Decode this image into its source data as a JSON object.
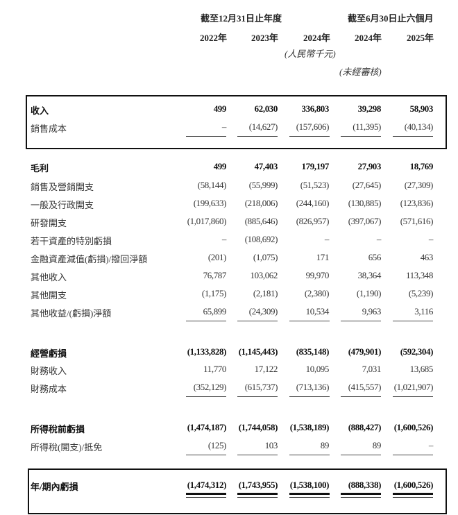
{
  "header": {
    "period_full_year": "截至12月31日止年度",
    "period_half_year": "截至6月30日止六個月",
    "years": [
      "2022年",
      "2023年",
      "2024年",
      "2024年",
      "2025年"
    ],
    "currency_note": "(人民幣千元)",
    "unaudited_note": "(未經審核)"
  },
  "rows": [
    {
      "label": "收入",
      "values": [
        "499",
        "62,030",
        "336,803",
        "39,298",
        "58,903"
      ]
    },
    {
      "label": "銷售成本",
      "values": [
        "–",
        "(14,627)",
        "(157,606)",
        "(11,395)",
        "(40,134)"
      ]
    },
    {
      "label": "毛利",
      "values": [
        "499",
        "47,403",
        "179,197",
        "27,903",
        "18,769"
      ]
    },
    {
      "label": "銷售及營銷開支",
      "values": [
        "(58,144)",
        "(55,999)",
        "(51,523)",
        "(27,645)",
        "(27,309)"
      ]
    },
    {
      "label": "一般及行政開支",
      "values": [
        "(199,633)",
        "(218,006)",
        "(244,160)",
        "(130,885)",
        "(123,836)"
      ]
    },
    {
      "label": "研發開支",
      "values": [
        "(1,017,860)",
        "(885,646)",
        "(826,957)",
        "(397,067)",
        "(571,616)"
      ]
    },
    {
      "label": "若干資產的特別虧損",
      "values": [
        "–",
        "(108,692)",
        "–",
        "–",
        "–"
      ]
    },
    {
      "label": "金融資產減值(虧損)/撥回淨額",
      "values": [
        "(201)",
        "(1,075)",
        "171",
        "656",
        "463"
      ]
    },
    {
      "label": "其他收入",
      "values": [
        "76,787",
        "103,062",
        "99,970",
        "38,364",
        "113,348"
      ]
    },
    {
      "label": "其他開支",
      "values": [
        "(1,175)",
        "(2,181)",
        "(2,380)",
        "(1,190)",
        "(5,239)"
      ]
    },
    {
      "label": "其他收益/(虧損)淨額",
      "values": [
        "65,899",
        "(24,309)",
        "10,534",
        "9,963",
        "3,116"
      ]
    },
    {
      "label": "經營虧損",
      "values": [
        "(1,133,828)",
        "(1,145,443)",
        "(835,148)",
        "(479,901)",
        "(592,304)"
      ]
    },
    {
      "label": "財務收入",
      "values": [
        "11,770",
        "17,122",
        "10,095",
        "7,031",
        "13,685"
      ]
    },
    {
      "label": "財務成本",
      "values": [
        "(352,129)",
        "(615,737)",
        "(713,136)",
        "(415,557)",
        "(1,021,907)"
      ]
    },
    {
      "label": "所得稅前虧損",
      "values": [
        "(1,474,187)",
        "(1,744,058)",
        "(1,538,189)",
        "(888,427)",
        "(1,600,526)"
      ]
    },
    {
      "label": "所得稅(開支)/抵免",
      "values": [
        "(125)",
        "103",
        "89",
        "89",
        "–"
      ]
    },
    {
      "label": "年/期內虧損",
      "values": [
        "(1,474,312)",
        "(1,743,955)",
        "(1,538,100)",
        "(888,338)",
        "(1,600,526)"
      ]
    }
  ]
}
